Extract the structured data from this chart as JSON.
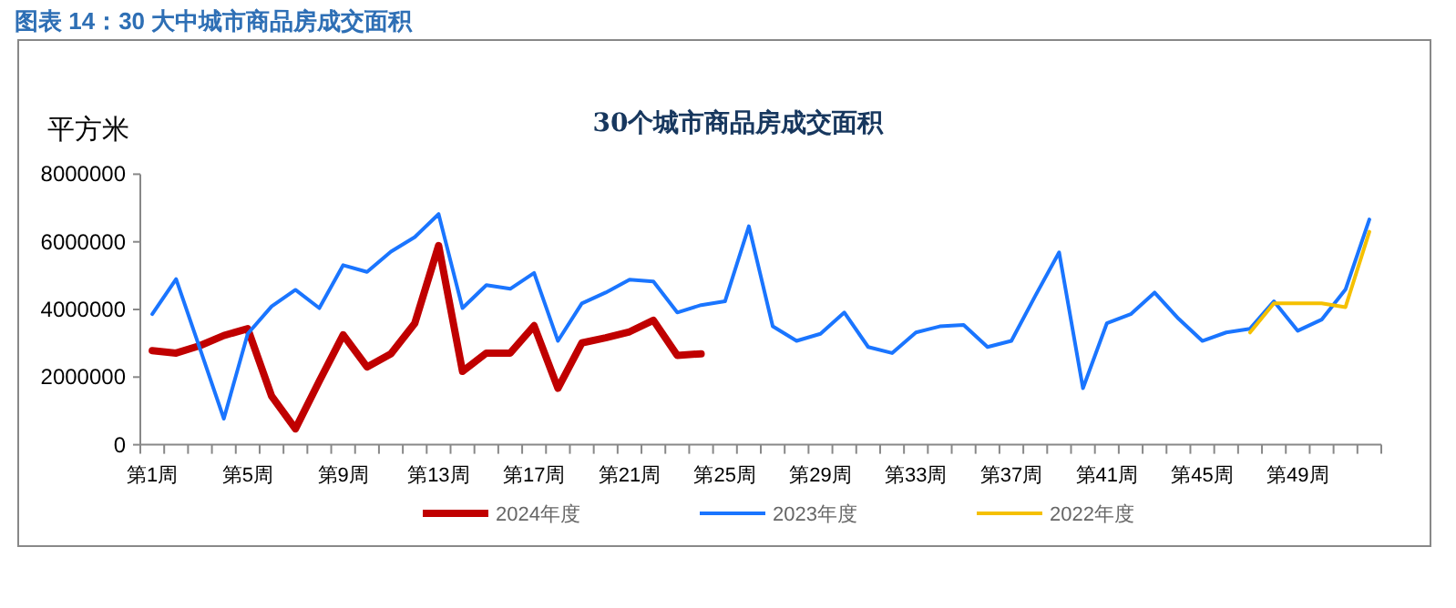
{
  "chart_data": {
    "type": "line",
    "title": "图表 14：30 大中城市商品房成交面积",
    "subtitle": "30个城市商品房成交面积",
    "ylabel": "平方米",
    "categories": [
      "第1周",
      null,
      null,
      null,
      "第5周",
      null,
      null,
      null,
      "第9周",
      null,
      null,
      null,
      "第13周",
      null,
      null,
      null,
      "第17周",
      null,
      null,
      null,
      "第21周",
      null,
      null,
      null,
      "第25周",
      null,
      null,
      null,
      "第29周",
      null,
      null,
      null,
      "第33周",
      null,
      null,
      null,
      "第37周",
      null,
      null,
      null,
      "第41周",
      null,
      null,
      null,
      "第45周",
      null,
      null,
      null,
      "第49周",
      null,
      null,
      null
    ],
    "ylim": [
      0,
      8000000
    ],
    "yticks": [
      0,
      2000000,
      4000000,
      6000000,
      8000000
    ],
    "grid": false,
    "legend": "bottom",
    "marker": "none",
    "series": [
      {
        "name": "2024年度",
        "color": "#c00000",
        "values": [
          2780000,
          2710000,
          2930000,
          3230000,
          3430000,
          1440000,
          470000,
          1880000,
          3250000,
          2300000,
          2690000,
          3590000,
          5890000,
          2170000,
          2710000,
          2710000,
          3520000,
          1670000,
          3010000,
          3160000,
          3340000,
          3680000,
          2640000,
          2690000,
          null,
          null,
          null,
          null,
          null,
          null,
          null,
          null,
          null,
          null,
          null,
          null,
          null,
          null,
          null,
          null,
          null,
          null,
          null,
          null,
          null,
          null,
          null,
          null,
          null,
          null,
          null,
          null
        ]
      },
      {
        "name": "2023年度",
        "color": "#1a75ff",
        "values": [
          3860000,
          4900000,
          2840000,
          770000,
          3280000,
          4090000,
          4580000,
          4040000,
          5310000,
          5110000,
          5710000,
          6140000,
          6820000,
          4040000,
          4720000,
          4610000,
          5080000,
          3070000,
          4180000,
          4500000,
          4880000,
          4830000,
          3910000,
          4130000,
          4240000,
          6460000,
          3500000,
          3070000,
          3280000,
          3910000,
          2890000,
          2710000,
          3320000,
          3500000,
          3540000,
          2890000,
          3070000,
          4400000,
          5690000,
          1670000,
          3590000,
          3860000,
          4500000,
          3730000,
          3070000,
          3320000,
          3430000,
          4240000,
          3370000,
          3700000,
          4590000,
          6660000
        ]
      },
      {
        "name": "2022年度",
        "color": "#f5c000",
        "values": [
          null,
          null,
          null,
          null,
          null,
          null,
          null,
          null,
          null,
          null,
          null,
          null,
          null,
          null,
          null,
          null,
          null,
          null,
          null,
          null,
          null,
          null,
          null,
          null,
          null,
          null,
          null,
          null,
          null,
          null,
          null,
          null,
          null,
          null,
          null,
          null,
          null,
          null,
          null,
          null,
          null,
          null,
          null,
          null,
          null,
          null,
          3320000,
          4180000,
          4180000,
          4180000,
          4070000,
          6300000
        ]
      }
    ]
  }
}
